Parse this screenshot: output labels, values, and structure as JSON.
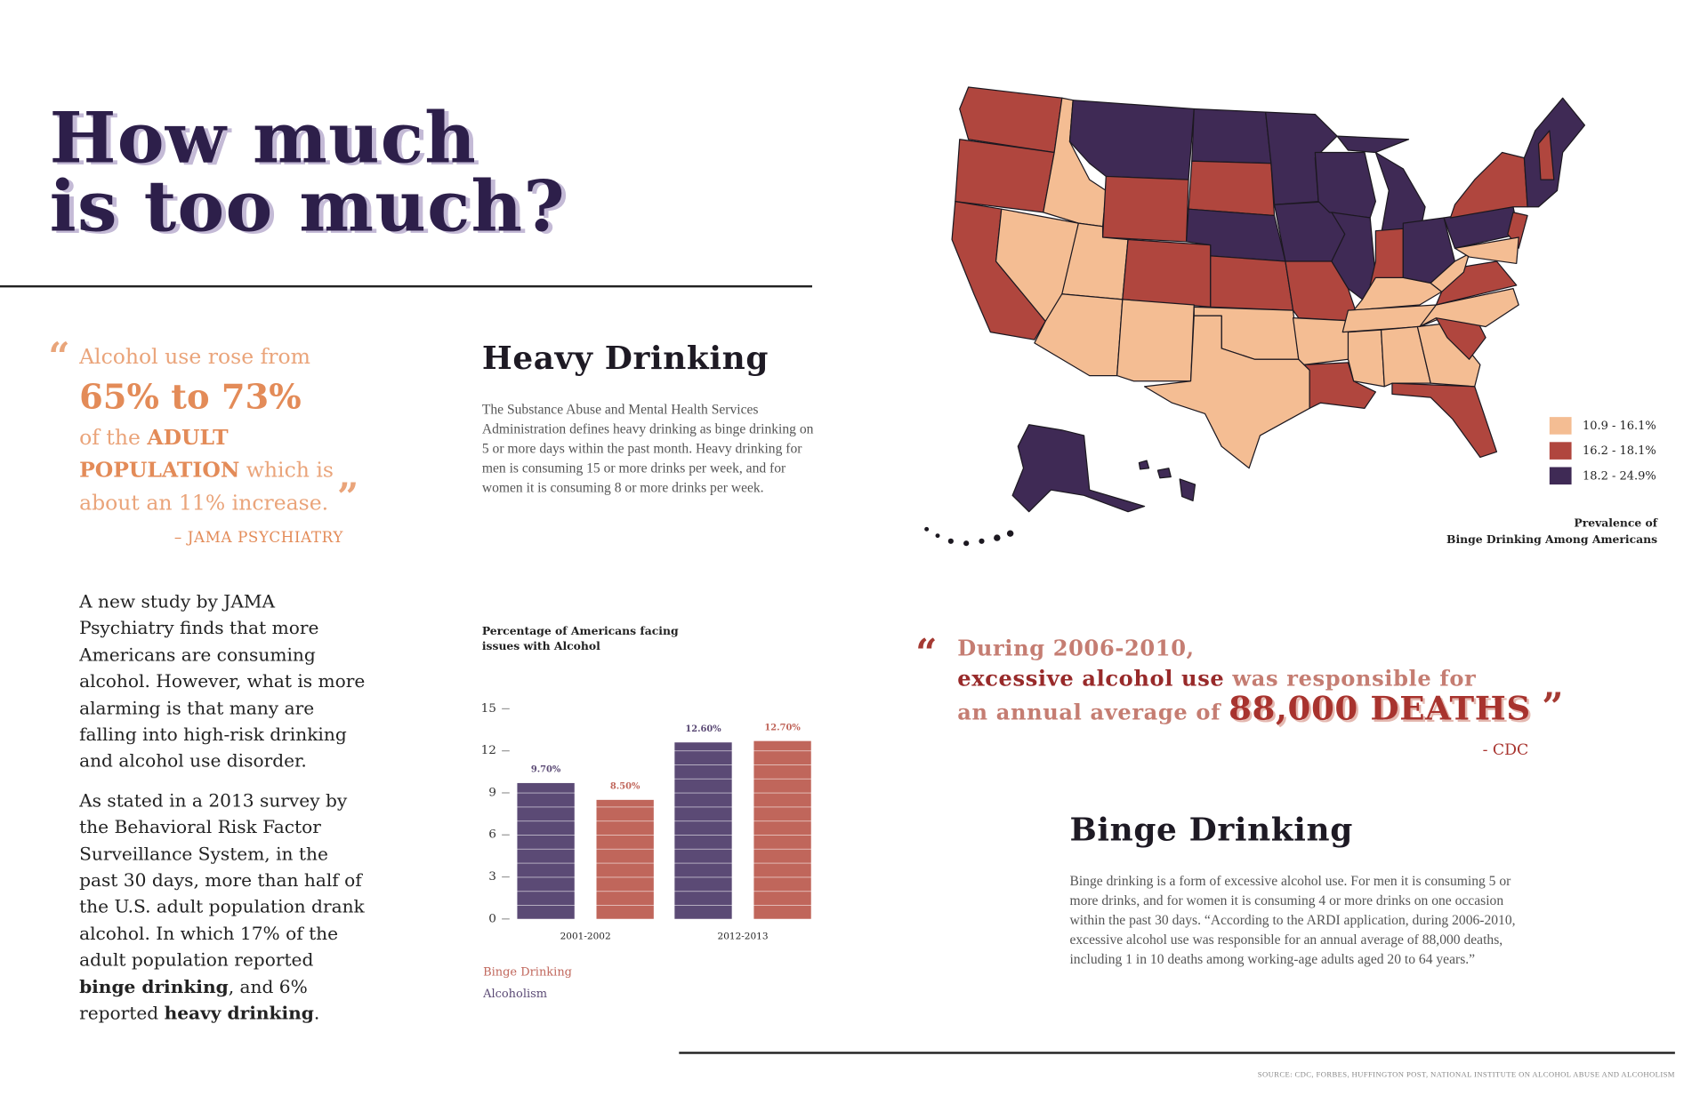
{
  "title": [
    "How much",
    "is too much?"
  ],
  "quote_1": {
    "open_mark": "“",
    "segments": [
      "Alcohol use rose from",
      "65% to 73%",
      "of the ",
      "ADULT POPULATION",
      " which is about an 11% increase."
    ],
    "close_mark": "”",
    "source": "– JAMA PSYCHIATRY"
  },
  "body": {
    "paragraph_1": "A new study by JAMA Psychiatry finds that more Americans are consuming alcohol. However, what is more alarming is that many are falling into high-risk drinking and alcohol use disorder.",
    "paragraph_2": [
      "As stated in a 2013 survey by the Behavioral Risk Factor Surveillance System, in the past 30 days, more than half of the U.S. adult population drank alcohol. In which 17% of the adult population reported ",
      "binge drinking",
      ", and 6% reported ",
      "heavy drinking",
      "."
    ]
  },
  "heavy_drinking": {
    "heading": "Heavy Drinking",
    "text": "The Substance Abuse and Mental Health Services Administration defines heavy drinking as binge drinking on 5 or more days within the past month. Heavy drinking for men is consuming 15 or more drinks per week, and for women it is consuming 8 or more drinks per week."
  },
  "chart_data": {
    "type": "bar",
    "title": [
      "Percentage of Americans facing",
      "issues with Alcohol"
    ],
    "categories": [
      "2001-2002",
      "2012-2013"
    ],
    "series": [
      {
        "name": "Binge Drinking",
        "color": "#c0665b",
        "values": [
          8.5,
          12.7
        ],
        "value_labels": [
          "8.50%",
          "12.70%"
        ]
      },
      {
        "name": "Alcoholism",
        "color": "#5b4a75",
        "values": [
          9.7,
          12.6
        ],
        "value_labels": [
          "9.70%",
          "12.60%"
        ]
      }
    ],
    "ylim": [
      0,
      15
    ],
    "yticks": [
      0,
      3,
      6,
      9,
      12,
      15
    ]
  },
  "map": {
    "legend": [
      {
        "label": "10.9 - 16.1%",
        "color": "#f4bd93"
      },
      {
        "label": "16.2 - 18.1%",
        "color": "#b0463e"
      },
      {
        "label": "18.2 - 24.9%",
        "color": "#3f2a55"
      }
    ],
    "caption": [
      "Prevalence of",
      "Binge Drinking Among Americans"
    ]
  },
  "quote_2": {
    "open_mark": "“",
    "segments": [
      "During 2006-2010,",
      "excessive alcohol use",
      " was responsible for",
      "an annual average of ",
      "88,000 DEATHS"
    ],
    "close_mark": "”",
    "source": "- CDC"
  },
  "binge_drinking": {
    "heading": "Binge Drinking",
    "text": "Binge drinking is a form of excessive alcohol use. For men it is consuming 5 or more drinks, and for women it is consuming 4 or more drinks on one occasion within the past 30 days. “According to the ARDI application, during 2006-2010, excessive alcohol use was responsible for an annual average of 88,000 deaths, including 1 in 10 deaths among working-age adults aged 20 to 64 years.”"
  },
  "footer_source": "SOURCE: CDC, FORBES, HUFFINGTON POST, NATIONAL INSTITUTE ON ALCOHOL ABUSE AND ALCOHOLISM"
}
